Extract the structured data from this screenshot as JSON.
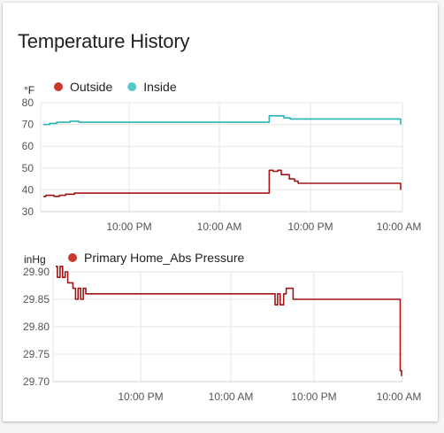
{
  "card": {
    "title": "Temperature History"
  },
  "chart_data": [
    {
      "type": "line",
      "ylabel": "°F",
      "ylim": [
        30,
        80
      ],
      "yticks": [
        "80",
        "70",
        "60",
        "50",
        "40",
        "30"
      ],
      "xticks": [
        "10:00 PM",
        "10:00 AM",
        "10:00 PM",
        "10:00 AM"
      ],
      "x_unit": "hours",
      "xlim": [
        0,
        40
      ],
      "legend_placement": "top-left",
      "series": [
        {
          "name": "Outside",
          "color": "#c8392b",
          "line_color": "#a31515",
          "points": [
            [
              0,
              37
            ],
            [
              0.3,
              37.5
            ],
            [
              0.8,
              37.5
            ],
            [
              1.2,
              37
            ],
            [
              1.8,
              37.5
            ],
            [
              2.5,
              38
            ],
            [
              3,
              38
            ],
            [
              3.5,
              38.5
            ],
            [
              12,
              38.5
            ],
            [
              24,
              38.5
            ],
            [
              25.3,
              38.5
            ],
            [
              25.35,
              49
            ],
            [
              25.8,
              48.5
            ],
            [
              26.3,
              49
            ],
            [
              26.7,
              47
            ],
            [
              27.3,
              47
            ],
            [
              27.6,
              45
            ],
            [
              28.2,
              44
            ],
            [
              28.6,
              43
            ],
            [
              32,
              43
            ],
            [
              40,
              43
            ],
            [
              40.1,
              40
            ]
          ]
        },
        {
          "name": "Inside",
          "color": "#5bc8c8",
          "line_color": "#28b4b4",
          "points": [
            [
              0,
              70
            ],
            [
              0.7,
              70.5
            ],
            [
              1.5,
              71
            ],
            [
              2.5,
              71
            ],
            [
              3,
              71.5
            ],
            [
              3.5,
              71.5
            ],
            [
              4,
              71
            ],
            [
              12,
              71
            ],
            [
              24,
              71
            ],
            [
              25.3,
              71
            ],
            [
              25.35,
              74
            ],
            [
              26.5,
              74
            ],
            [
              27,
              73
            ],
            [
              27.7,
              72.5
            ],
            [
              28.5,
              72.5
            ],
            [
              40,
              72.5
            ],
            [
              40.1,
              70
            ]
          ]
        }
      ]
    },
    {
      "type": "line",
      "ylabel": "inHg",
      "ylim": [
        29.7,
        29.9
      ],
      "yticks": [
        "29.90",
        "29.85",
        "29.80",
        "29.75",
        "29.70"
      ],
      "xticks": [
        "10:00 PM",
        "10:00 AM",
        "10:00 PM",
        "10:00 AM"
      ],
      "x_unit": "hours",
      "xlim": [
        0,
        40
      ],
      "legend_placement": "top-left",
      "series": [
        {
          "name": "Primary Home_Abs Pressure",
          "color": "#c8392b",
          "line_color": "#a31515",
          "points": [
            [
              0,
              29.91
            ],
            [
              0.2,
              29.89
            ],
            [
              0.5,
              29.91
            ],
            [
              0.8,
              29.89
            ],
            [
              1.1,
              29.9
            ],
            [
              1.4,
              29.88
            ],
            [
              1.7,
              29.88
            ],
            [
              2,
              29.87
            ],
            [
              2.3,
              29.85
            ],
            [
              2.6,
              29.87
            ],
            [
              2.9,
              29.85
            ],
            [
              3.2,
              29.87
            ],
            [
              3.5,
              29.86
            ],
            [
              12,
              29.86
            ],
            [
              24,
              29.86
            ],
            [
              25.3,
              29.86
            ],
            [
              25.5,
              29.84
            ],
            [
              25.8,
              29.86
            ],
            [
              26.1,
              29.84
            ],
            [
              26.5,
              29.86
            ],
            [
              26.8,
              29.87
            ],
            [
              27.2,
              29.87
            ],
            [
              27.6,
              29.85
            ],
            [
              28,
              29.85
            ],
            [
              40,
              29.85
            ],
            [
              40.05,
              29.72
            ],
            [
              40.2,
              29.71
            ]
          ]
        }
      ]
    }
  ]
}
